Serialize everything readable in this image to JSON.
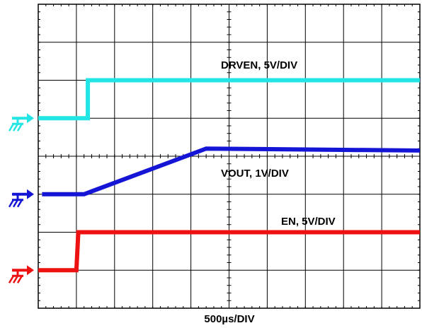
{
  "chart_data": {
    "type": "line",
    "title": "",
    "xlabel": "500µs/DIV",
    "ylabel": "",
    "grid": true,
    "divisions": {
      "x": 10,
      "y": 8
    },
    "xlim": [
      0,
      10
    ],
    "ylim": [
      0,
      8
    ],
    "units": "divisions",
    "series": [
      {
        "name": "DRVEN, 5V/DIV",
        "color": "#22e5e5",
        "ground_marker_y": 5.0,
        "x": [
          0,
          1.3,
          1.3,
          10
        ],
        "y": [
          5.0,
          5.0,
          6.0,
          6.0
        ]
      },
      {
        "name": "VOUT, 1V/DIV",
        "color": "#1515d6",
        "ground_marker_y": 3.0,
        "x": [
          0.1,
          1.2,
          4.4,
          10
        ],
        "y": [
          3.0,
          3.0,
          4.2,
          4.15
        ]
      },
      {
        "name": "EN, 5V/DIV",
        "color": "#ee1111",
        "ground_marker_y": 1.0,
        "x": [
          0,
          1.0,
          1.05,
          10
        ],
        "y": [
          1.0,
          1.0,
          2.0,
          2.0
        ]
      }
    ]
  }
}
